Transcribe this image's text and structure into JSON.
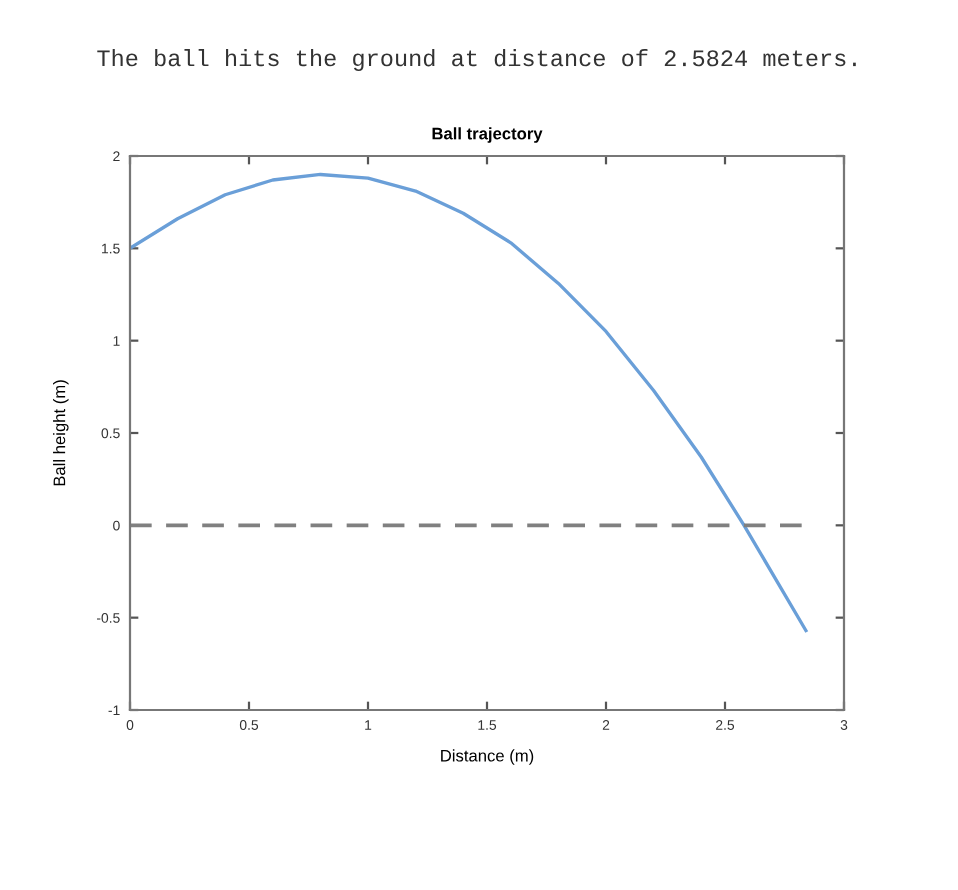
{
  "chart_data": {
    "type": "line",
    "title": "Ball trajectory",
    "xlabel": "Distance (m)",
    "ylabel": "Ball height (m)",
    "annotations": [
      "The ball hits the ground at distance of 2.5824 meters."
    ],
    "series": [
      {
        "color": "#6a9fd8",
        "line_style": "solid",
        "x": [
          0,
          0.2,
          0.4,
          0.6,
          0.8,
          1.0,
          1.2,
          1.4,
          1.6,
          1.8,
          2.0,
          2.2,
          2.4,
          2.58,
          2.84
        ],
        "values": [
          1.5,
          1.66,
          1.79,
          1.87,
          1.9,
          1.88,
          1.81,
          1.69,
          1.53,
          1.31,
          1.05,
          0.73,
          0.37,
          0.0,
          -0.57
        ]
      },
      {
        "type": "line",
        "color": "#808080",
        "line_style": "dashed",
        "x": [
          0,
          2.84
        ],
        "values": [
          0,
          0
        ]
      }
    ],
    "xlim": [
      0,
      3
    ],
    "ylim": [
      -1,
      2
    ],
    "xticks": [
      0,
      0.5,
      1,
      1.5,
      2,
      2.5,
      3
    ],
    "yticks": [
      -1,
      -0.5,
      0,
      0.5,
      1,
      1.5,
      2
    ],
    "grid": false,
    "legend": false,
    "marker": "none"
  }
}
